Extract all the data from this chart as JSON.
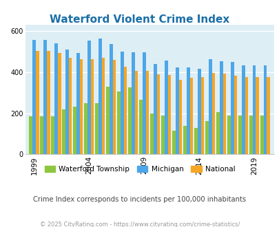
{
  "title": "Waterford Violent Crime Index",
  "years": [
    1999,
    2000,
    2001,
    2002,
    2003,
    2004,
    2005,
    2006,
    2007,
    2008,
    2009,
    2010,
    2011,
    2012,
    2013,
    2014,
    2015,
    2016,
    2017,
    2018,
    2019,
    2020
  ],
  "waterford": [
    185,
    185,
    185,
    218,
    232,
    248,
    248,
    330,
    305,
    325,
    265,
    200,
    190,
    115,
    140,
    128,
    163,
    205,
    190,
    190,
    190,
    190
  ],
  "michigan": [
    557,
    558,
    540,
    510,
    495,
    555,
    565,
    537,
    500,
    497,
    497,
    440,
    457,
    425,
    425,
    415,
    462,
    453,
    450,
    435,
    435,
    435
  ],
  "national": [
    505,
    505,
    495,
    470,
    463,
    463,
    470,
    460,
    428,
    405,
    405,
    390,
    388,
    363,
    372,
    375,
    395,
    394,
    383,
    375,
    375,
    375
  ],
  "bar_colors": {
    "waterford": "#8dc63f",
    "michigan": "#4da6e8",
    "national": "#f5a623"
  },
  "bg_color": "#deeef5",
  "grid_color": "#ffffff",
  "ylabel_ticks": [
    0,
    200,
    400,
    600
  ],
  "ylim": [
    0,
    630
  ],
  "subtitle": "Crime Index corresponds to incidents per 100,000 inhabitants",
  "footer": "© 2025 CityRating.com - https://www.cityrating.com/crime-statistics/",
  "legend_labels": [
    "Waterford Township",
    "Michigan",
    "National"
  ],
  "title_color": "#1a6fa8",
  "subtitle_color": "#444444",
  "footer_color": "#999999"
}
